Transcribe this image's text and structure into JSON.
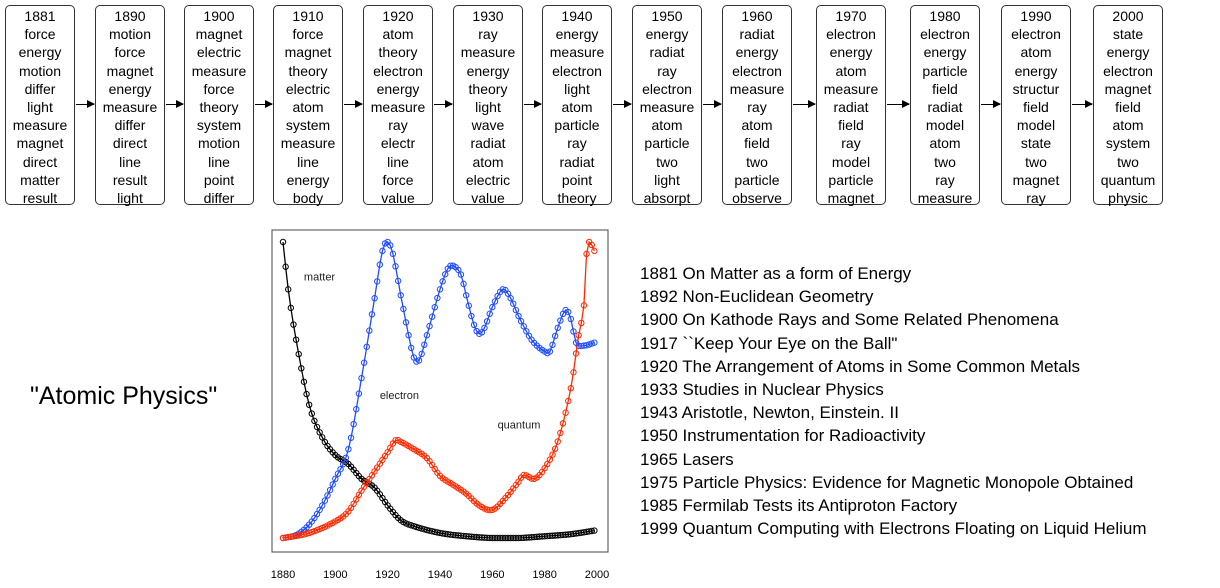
{
  "topic_timeline": [
    {
      "year": "1881",
      "words": [
        "force",
        "energy",
        "motion",
        "differ",
        "light",
        "measure",
        "magnet",
        "direct",
        "matter",
        "result"
      ]
    },
    {
      "year": "1890",
      "words": [
        "motion",
        "force",
        "magnet",
        "energy",
        "measure",
        "differ",
        "direct",
        "line",
        "result",
        "light"
      ]
    },
    {
      "year": "1900",
      "words": [
        "magnet",
        "electric",
        "measure",
        "force",
        "theory",
        "system",
        "motion",
        "line",
        "point",
        "differ"
      ]
    },
    {
      "year": "1910",
      "words": [
        "force",
        "magnet",
        "theory",
        "electric",
        "atom",
        "system",
        "measure",
        "line",
        "energy",
        "body"
      ]
    },
    {
      "year": "1920",
      "words": [
        "atom",
        "theory",
        "electron",
        "energy",
        "measure",
        "ray",
        "electr",
        "line",
        "force",
        "value"
      ]
    },
    {
      "year": "1930",
      "words": [
        "ray",
        "measure",
        "energy",
        "theory",
        "light",
        "wave",
        "radiat",
        "atom",
        "electric",
        "value"
      ]
    },
    {
      "year": "1940",
      "words": [
        "energy",
        "measure",
        "electron",
        "light",
        "atom",
        "particle",
        "ray",
        "radiat",
        "point",
        "theory"
      ]
    },
    {
      "year": "1950",
      "words": [
        "energy",
        "radiat",
        "ray",
        "electron",
        "measure",
        "atom",
        "particle",
        "two",
        "light",
        "absorpt"
      ]
    },
    {
      "year": "1960",
      "words": [
        "radiat",
        "energy",
        "electron",
        "measure",
        "ray",
        "atom",
        "field",
        "two",
        "particle",
        "observe"
      ]
    },
    {
      "year": "1970",
      "words": [
        "electron",
        "energy",
        "atom",
        "measure",
        "radiat",
        "field",
        "ray",
        "model",
        "particle",
        "magnet"
      ]
    },
    {
      "year": "1980",
      "words": [
        "electron",
        "energy",
        "particle",
        "field",
        "radiat",
        "model",
        "atom",
        "two",
        "ray",
        "measure"
      ]
    },
    {
      "year": "1990",
      "words": [
        "electron",
        "atom",
        "energy",
        "structur",
        "field",
        "model",
        "state",
        "two",
        "magnet",
        "ray"
      ]
    },
    {
      "year": "2000",
      "words": [
        "state",
        "energy",
        "electron",
        "magnet",
        "field",
        "atom",
        "system",
        "two",
        "quantum",
        "physic"
      ]
    }
  ],
  "topic_title": "\"Atomic Physics\"",
  "articles": [
    "1881 On Matter as a form of Energy",
    "1892 Non-Euclidean Geometry",
    "1900 On Kathode Rays and Some Related Phenomena",
    "1917 ``Keep Your Eye on the Ball\"",
    "1920 The Arrangement of Atoms in Some Common Metals",
    "1933 Studies in Nuclear Physics",
    "1943 Aristotle, Newton, Einstein. II",
    "1950 Instrumentation for Radioactivity",
    "1965 Lasers",
    "1975 Particle Physics: Evidence for Magnetic Monopole Obtained",
    "1985 Fermilab Tests its Antiproton Factory",
    "1999 Quantum Computing with Electrons Floating on Liquid Helium"
  ],
  "chart_data": {
    "type": "line",
    "title": "",
    "xlabel": "",
    "ylabel": "",
    "xlim": [
      1880,
      2000
    ],
    "ylim": [
      0,
      1
    ],
    "x_ticks": [
      "1880",
      "1900",
      "1920",
      "1940",
      "1960",
      "1980",
      "2000"
    ],
    "series": [
      {
        "name": "matter",
        "color": "#000000",
        "points": [
          [
            1880,
            1.0
          ],
          [
            1882,
            0.84
          ],
          [
            1885,
            0.67
          ],
          [
            1890,
            0.45
          ],
          [
            1895,
            0.34
          ],
          [
            1900,
            0.28
          ],
          [
            1905,
            0.25
          ],
          [
            1910,
            0.2
          ],
          [
            1915,
            0.17
          ],
          [
            1920,
            0.11
          ],
          [
            1925,
            0.06
          ],
          [
            1930,
            0.04
          ],
          [
            1940,
            0.017
          ],
          [
            1950,
            0.006
          ],
          [
            1960,
            0
          ],
          [
            1970,
            0
          ],
          [
            1980,
            0.006
          ],
          [
            1990,
            0.013
          ],
          [
            1999,
            0.025
          ]
        ]
      },
      {
        "name": "electron",
        "color": "#1f4cff",
        "points": [
          [
            1880,
            0
          ],
          [
            1885,
            0.01
          ],
          [
            1890,
            0.045
          ],
          [
            1895,
            0.11
          ],
          [
            1900,
            0.2
          ],
          [
            1905,
            0.3
          ],
          [
            1910,
            0.54
          ],
          [
            1915,
            0.81
          ],
          [
            1918,
            0.97
          ],
          [
            1920,
            1.0
          ],
          [
            1922,
            0.96
          ],
          [
            1925,
            0.82
          ],
          [
            1928,
            0.685
          ],
          [
            1930,
            0.61
          ],
          [
            1932,
            0.6
          ],
          [
            1935,
            0.685
          ],
          [
            1940,
            0.84
          ],
          [
            1943,
            0.91
          ],
          [
            1945,
            0.92
          ],
          [
            1948,
            0.89
          ],
          [
            1950,
            0.82
          ],
          [
            1953,
            0.72
          ],
          [
            1955,
            0.69
          ],
          [
            1957,
            0.71
          ],
          [
            1960,
            0.78
          ],
          [
            1964,
            0.84
          ],
          [
            1967,
            0.81
          ],
          [
            1970,
            0.75
          ],
          [
            1975,
            0.67
          ],
          [
            1980,
            0.63
          ],
          [
            1982,
            0.63
          ],
          [
            1985,
            0.71
          ],
          [
            1988,
            0.77
          ],
          [
            1990,
            0.74
          ],
          [
            1992,
            0.66
          ],
          [
            1995,
            0.65
          ],
          [
            1999,
            0.66
          ]
        ]
      },
      {
        "name": "quantum",
        "color": "#ff2a00",
        "points": [
          [
            1880,
            0
          ],
          [
            1890,
            0.017
          ],
          [
            1900,
            0.056
          ],
          [
            1905,
            0.09
          ],
          [
            1910,
            0.16
          ],
          [
            1915,
            0.225
          ],
          [
            1920,
            0.29
          ],
          [
            1923,
            0.33
          ],
          [
            1925,
            0.325
          ],
          [
            1930,
            0.3
          ],
          [
            1935,
            0.27
          ],
          [
            1940,
            0.21
          ],
          [
            1945,
            0.18
          ],
          [
            1950,
            0.15
          ],
          [
            1955,
            0.11
          ],
          [
            1960,
            0.095
          ],
          [
            1965,
            0.135
          ],
          [
            1970,
            0.19
          ],
          [
            1972,
            0.213
          ],
          [
            1976,
            0.2
          ],
          [
            1980,
            0.236
          ],
          [
            1985,
            0.326
          ],
          [
            1990,
            0.506
          ],
          [
            1993,
            0.685
          ],
          [
            1995,
            0.786
          ],
          [
            1996,
            0.96
          ],
          [
            1997,
            1.0
          ],
          [
            1998,
            0.99
          ],
          [
            1999,
            0.97
          ]
        ]
      }
    ],
    "annotations": [
      {
        "text": "matter",
        "x": 1888,
        "y": 0.87
      },
      {
        "text": "electron",
        "x": 1917,
        "y": 0.47
      },
      {
        "text": "quantum",
        "x": 1962,
        "y": 0.37
      }
    ]
  }
}
